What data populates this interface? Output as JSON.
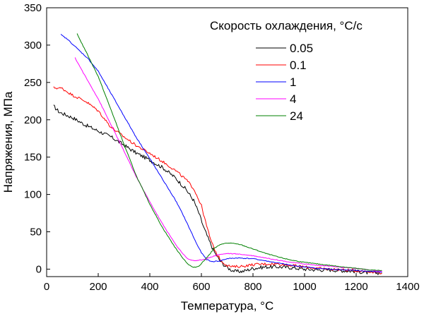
{
  "chart_data": {
    "type": "line",
    "title": "",
    "xlabel": "Температура, °C",
    "ylabel": "Напряжения, МПа",
    "xlim": [
      0,
      1400
    ],
    "ylim": [
      -10,
      350
    ],
    "x_ticks": [
      0,
      200,
      400,
      600,
      800,
      1000,
      1200,
      1400
    ],
    "y_ticks": [
      0,
      50,
      100,
      150,
      200,
      250,
      300,
      350
    ],
    "grid": false,
    "legend": {
      "title": "Скорость охлаждения, °C/с",
      "position": "top-right"
    },
    "series": [
      {
        "name": "0.05",
        "color": "#000000",
        "noise": 2.5,
        "points": [
          [
            27,
            218
          ],
          [
            50,
            210
          ],
          [
            100,
            203
          ],
          [
            150,
            193
          ],
          [
            200,
            185
          ],
          [
            250,
            177
          ],
          [
            300,
            166
          ],
          [
            350,
            155
          ],
          [
            400,
            146
          ],
          [
            450,
            136
          ],
          [
            500,
            122
          ],
          [
            540,
            107
          ],
          [
            570,
            92
          ],
          [
            590,
            75
          ],
          [
            610,
            55
          ],
          [
            630,
            38
          ],
          [
            650,
            23
          ],
          [
            670,
            12
          ],
          [
            690,
            5
          ],
          [
            710,
            0
          ],
          [
            730,
            -3
          ],
          [
            760,
            -3
          ],
          [
            800,
            1
          ],
          [
            850,
            3
          ],
          [
            900,
            3
          ],
          [
            950,
            2
          ],
          [
            1000,
            0
          ],
          [
            1050,
            -1
          ],
          [
            1100,
            -1
          ],
          [
            1150,
            -2
          ],
          [
            1200,
            -3
          ],
          [
            1250,
            -5
          ],
          [
            1300,
            -5
          ]
        ]
      },
      {
        "name": "0.1",
        "color": "#ff0000",
        "noise": 1.8,
        "points": [
          [
            27,
            243
          ],
          [
            60,
            242
          ],
          [
            100,
            233
          ],
          [
            150,
            225
          ],
          [
            200,
            212
          ],
          [
            250,
            190
          ],
          [
            300,
            177
          ],
          [
            350,
            165
          ],
          [
            400,
            155
          ],
          [
            450,
            144
          ],
          [
            500,
            132
          ],
          [
            540,
            120
          ],
          [
            570,
            108
          ],
          [
            600,
            85
          ],
          [
            620,
            58
          ],
          [
            640,
            35
          ],
          [
            660,
            20
          ],
          [
            680,
            10
          ],
          [
            700,
            5
          ],
          [
            720,
            3
          ],
          [
            760,
            4
          ],
          [
            800,
            6
          ],
          [
            850,
            7
          ],
          [
            900,
            7
          ],
          [
            950,
            5
          ],
          [
            1000,
            3
          ],
          [
            1050,
            1
          ],
          [
            1100,
            0
          ],
          [
            1150,
            -1
          ],
          [
            1200,
            -2
          ],
          [
            1250,
            -3
          ],
          [
            1300,
            -5
          ]
        ]
      },
      {
        "name": "1",
        "color": "#0000ff",
        "noise": 0.6,
        "points": [
          [
            55,
            314
          ],
          [
            80,
            308
          ],
          [
            120,
            295
          ],
          [
            160,
            282
          ],
          [
            200,
            265
          ],
          [
            250,
            235
          ],
          [
            300,
            205
          ],
          [
            350,
            175
          ],
          [
            400,
            148
          ],
          [
            450,
            120
          ],
          [
            500,
            92
          ],
          [
            530,
            72
          ],
          [
            560,
            50
          ],
          [
            580,
            35
          ],
          [
            600,
            22
          ],
          [
            620,
            13
          ],
          [
            640,
            10
          ],
          [
            670,
            11
          ],
          [
            700,
            14
          ],
          [
            740,
            15
          ],
          [
            800,
            14
          ],
          [
            850,
            11
          ],
          [
            900,
            8
          ],
          [
            950,
            5
          ],
          [
            1000,
            3
          ],
          [
            1050,
            1
          ],
          [
            1100,
            0
          ],
          [
            1150,
            -1
          ],
          [
            1200,
            -2
          ],
          [
            1250,
            -3
          ],
          [
            1300,
            -4
          ]
        ]
      },
      {
        "name": "4",
        "color": "#ff00ff",
        "noise": 0.5,
        "points": [
          [
            110,
            283
          ],
          [
            150,
            258
          ],
          [
            200,
            228
          ],
          [
            250,
            193
          ],
          [
            300,
            158
          ],
          [
            350,
            122
          ],
          [
            400,
            90
          ],
          [
            450,
            60
          ],
          [
            500,
            33
          ],
          [
            530,
            20
          ],
          [
            550,
            13
          ],
          [
            580,
            11
          ],
          [
            620,
            14
          ],
          [
            660,
            19
          ],
          [
            700,
            21
          ],
          [
            750,
            20
          ],
          [
            800,
            18
          ],
          [
            850,
            15
          ],
          [
            900,
            12
          ],
          [
            950,
            9
          ],
          [
            1000,
            7
          ],
          [
            1050,
            5
          ],
          [
            1100,
            4
          ],
          [
            1150,
            2
          ],
          [
            1200,
            1
          ],
          [
            1250,
            -1
          ],
          [
            1300,
            -3
          ]
        ]
      },
      {
        "name": "24",
        "color": "#008000",
        "noise": 0.5,
        "points": [
          [
            118,
            315
          ],
          [
            150,
            293
          ],
          [
            200,
            258
          ],
          [
            250,
            213
          ],
          [
            300,
            167
          ],
          [
            350,
            123
          ],
          [
            400,
            87
          ],
          [
            450,
            55
          ],
          [
            500,
            28
          ],
          [
            530,
            14
          ],
          [
            550,
            6
          ],
          [
            570,
            2
          ],
          [
            590,
            4
          ],
          [
            620,
            15
          ],
          [
            650,
            28
          ],
          [
            680,
            34
          ],
          [
            710,
            35
          ],
          [
            750,
            33
          ],
          [
            800,
            27
          ],
          [
            850,
            21
          ],
          [
            900,
            16
          ],
          [
            950,
            12
          ],
          [
            1000,
            9
          ],
          [
            1050,
            7
          ],
          [
            1100,
            5
          ],
          [
            1150,
            3
          ],
          [
            1200,
            1
          ],
          [
            1250,
            -1
          ],
          [
            1300,
            -2
          ]
        ]
      }
    ]
  }
}
